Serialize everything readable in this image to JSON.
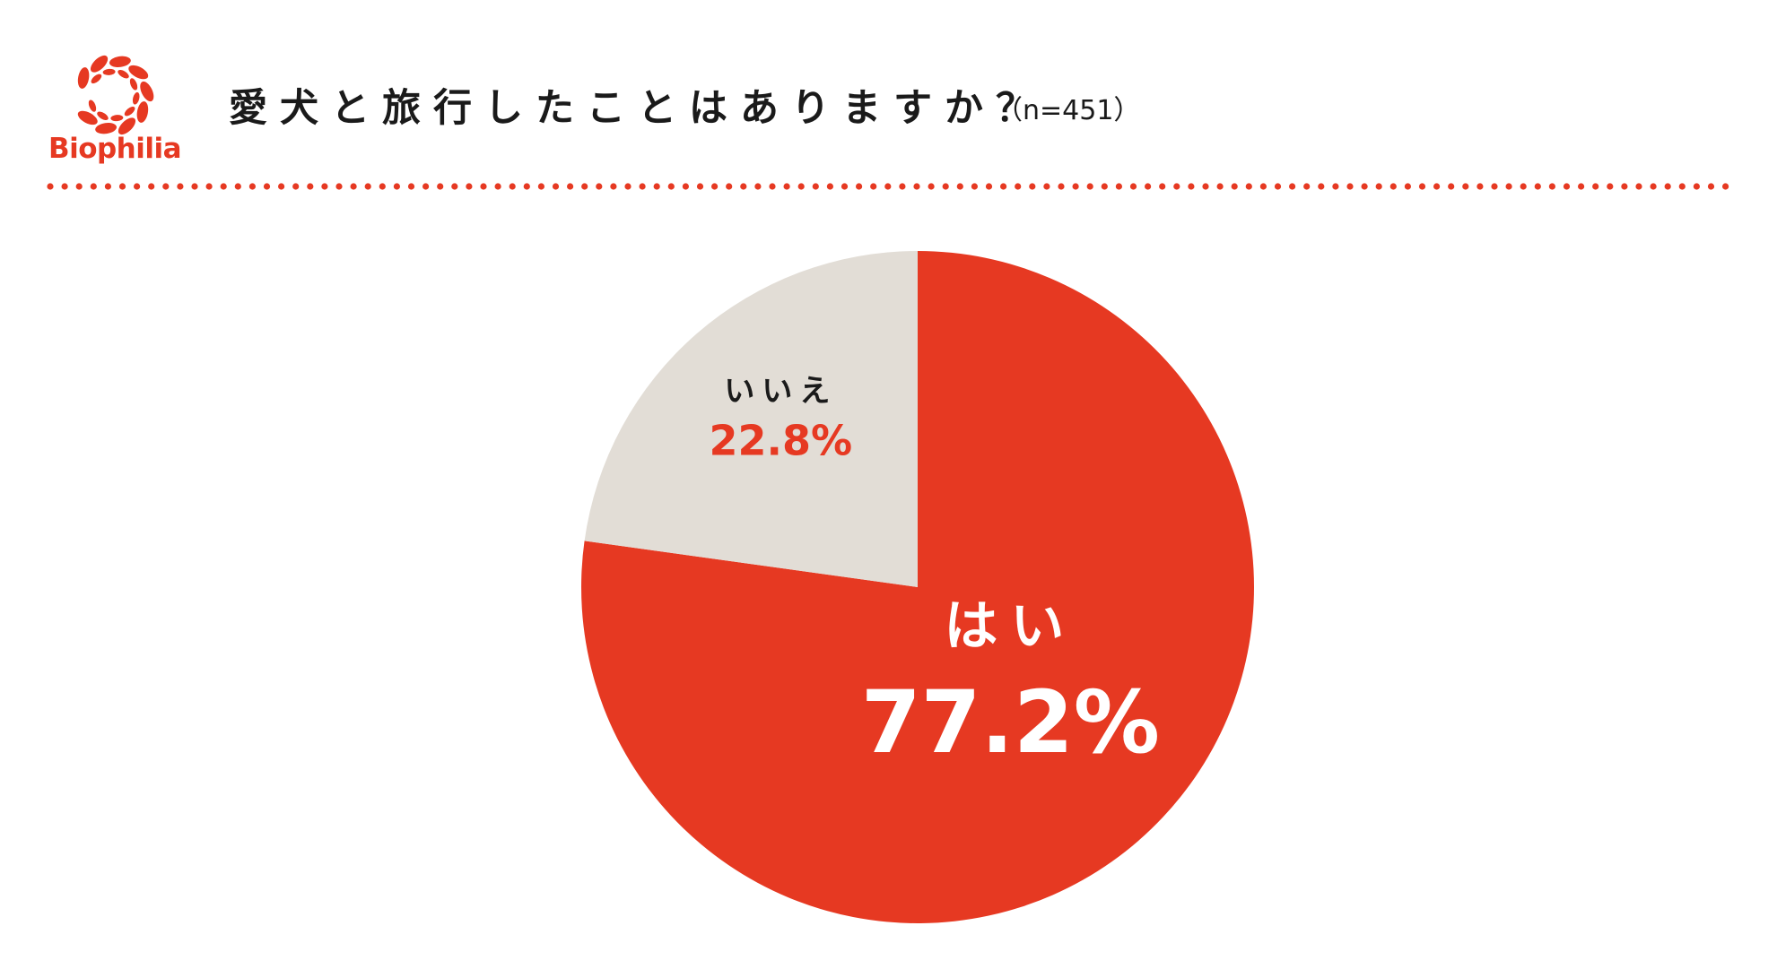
{
  "brand": {
    "name": "Biophilia"
  },
  "header": {
    "title": "愛犬と旅行したことはありますか？",
    "sample": "（n=451）"
  },
  "colors": {
    "accent": "#e63922",
    "secondary": "#e2ddd6",
    "text": "#1a1a1a"
  },
  "chart_data": {
    "type": "pie",
    "title": "愛犬と旅行したことはありますか？",
    "n": 451,
    "start": "12 o'clock",
    "direction": "clockwise",
    "slices": [
      {
        "label": "はい",
        "value": 77.2,
        "value_label": "77.2%",
        "color": "#e63922"
      },
      {
        "label": "いいえ",
        "value": 22.8,
        "value_label": "22.8%",
        "color": "#e2ddd6"
      }
    ]
  }
}
